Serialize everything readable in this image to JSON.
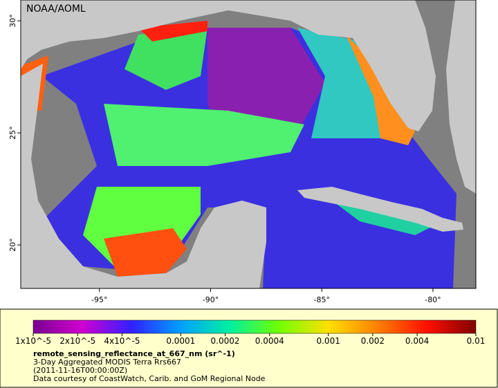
{
  "map": {
    "credit": "NOAA/AOML",
    "xlim": [
      -98.54,
      -78.07
    ],
    "ylim": [
      18.06,
      30.93
    ],
    "xticks": [
      {
        "value": -95,
        "label": "-95°"
      },
      {
        "value": -90,
        "label": "-90°"
      },
      {
        "value": -85,
        "label": "-85°"
      },
      {
        "value": -80,
        "label": "-80°"
      }
    ],
    "yticks": [
      {
        "value": 20,
        "label": "20°"
      },
      {
        "value": 25,
        "label": "25°"
      },
      {
        "value": 30,
        "label": "30°"
      }
    ]
  },
  "colorbar": {
    "scale": "log",
    "lim": [
      1e-05,
      0.01
    ],
    "colors": [
      "#7a0090",
      "#d000d0",
      "#3020ff",
      "#00a0ff",
      "#00f0a0",
      "#70ff00",
      "#ffe000",
      "#ff8000",
      "#ff1000",
      "#800000"
    ],
    "ticks": [
      {
        "value": 1e-05,
        "label": "1x10^-5"
      },
      {
        "value": 2e-05,
        "label": "2x10^-5"
      },
      {
        "value": 4e-05,
        "label": "4x10^-5"
      },
      0.0001,
      0.0002,
      0.0004,
      0.001,
      0.002,
      0.004,
      0.01
    ],
    "variable": "remote_sensing_reflectance_at_667_nm (sr^-1)",
    "lines": [
      "3-Day Aggregated MODIS Terra Rrs667",
      "(2011-11-16T00:00:00Z)",
      "Data courtesy of CoastWatch, Carib. and GoM Regional Node"
    ]
  }
}
